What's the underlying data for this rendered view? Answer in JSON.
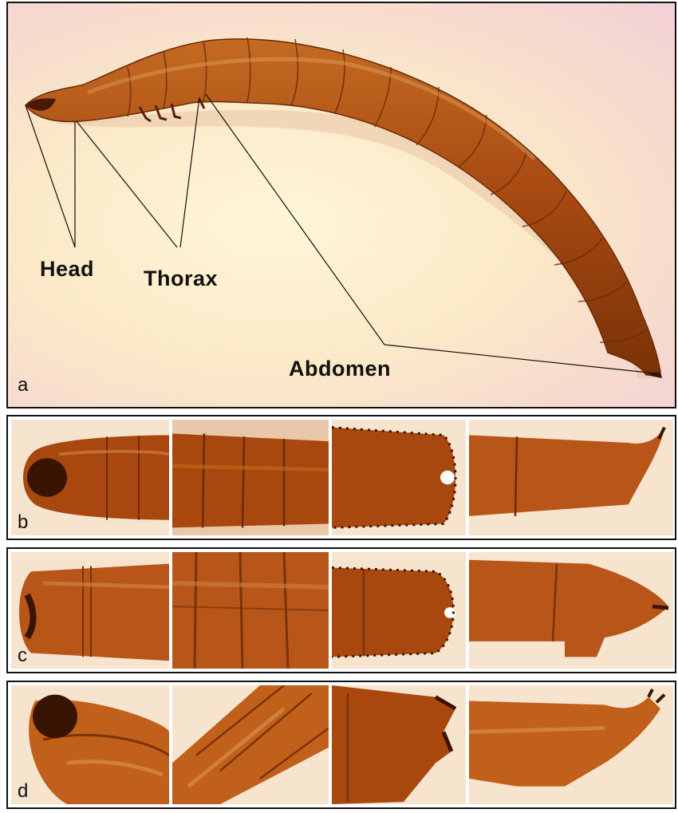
{
  "panel_a": {
    "letter": "a",
    "labels": {
      "head": "Head",
      "thorax": "Thorax",
      "abdomen": "Abdomen"
    }
  },
  "rows": [
    {
      "letter": "b"
    },
    {
      "letter": "c"
    },
    {
      "letter": "d"
    }
  ],
  "colors": {
    "larva_dark": "#7a3208",
    "larva_mid": "#a8480f",
    "larva_light": "#c8691d",
    "background_warm": "#fbe9c8",
    "pointer_lines": "#111111"
  }
}
